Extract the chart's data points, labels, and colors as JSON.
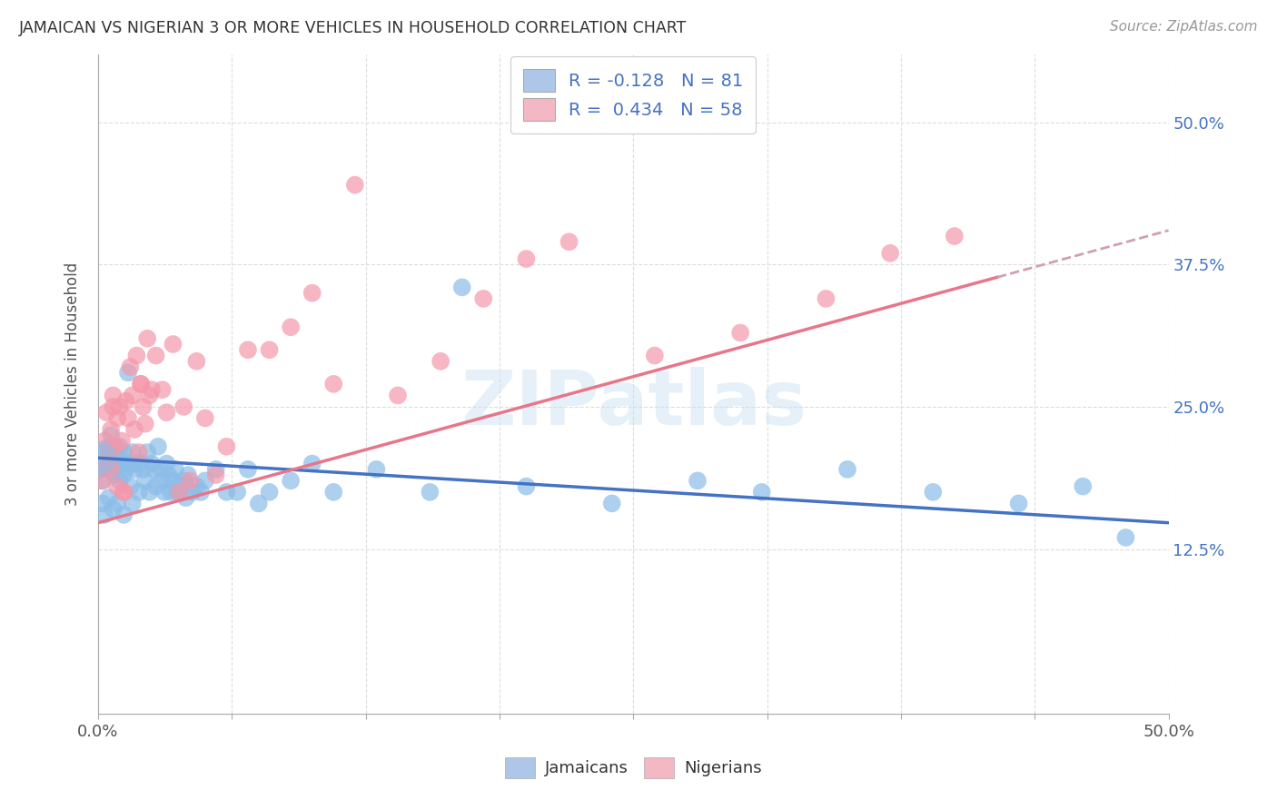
{
  "title": "JAMAICAN VS NIGERIAN 3 OR MORE VEHICLES IN HOUSEHOLD CORRELATION CHART",
  "source": "Source: ZipAtlas.com",
  "ylabel": "3 or more Vehicles in Household",
  "ytick_values": [
    0.125,
    0.25,
    0.375,
    0.5
  ],
  "ytick_labels": [
    "12.5%",
    "25.0%",
    "37.5%",
    "50.0%"
  ],
  "xlim": [
    0.0,
    0.5
  ],
  "ylim": [
    -0.02,
    0.56
  ],
  "jamaicans_color": "#8bbde8",
  "nigerians_color": "#f497aa",
  "regression_jamaicans_color": "#4472c4",
  "regression_nigerians_color": "#e8768a",
  "regression_dashed_color": "#d0a0b0",
  "legend_patch_jam_color": "#aec6e8",
  "legend_patch_nig_color": "#f4b8c4",
  "R_jamaicans": -0.128,
  "N_jamaicans": 81,
  "R_nigerians": 0.434,
  "N_nigerians": 58,
  "watermark_text": "ZIPatlas",
  "background_color": "#ffffff",
  "grid_color": "#dddddd",
  "xtick_positions": [
    0.0,
    0.0625,
    0.125,
    0.1875,
    0.25,
    0.3125,
    0.375,
    0.4375,
    0.5
  ],
  "regression_jam_y0": 0.205,
  "regression_jam_y1": 0.148,
  "regression_nig_y0": 0.148,
  "regression_nig_y1": 0.405,
  "regression_nig_solid_end": 0.42,
  "jamaicans_x": [
    0.001,
    0.002,
    0.003,
    0.004,
    0.005,
    0.005,
    0.006,
    0.006,
    0.007,
    0.007,
    0.008,
    0.008,
    0.009,
    0.009,
    0.01,
    0.01,
    0.011,
    0.012,
    0.012,
    0.013,
    0.014,
    0.015,
    0.015,
    0.016,
    0.017,
    0.018,
    0.019,
    0.02,
    0.021,
    0.022,
    0.023,
    0.024,
    0.025,
    0.026,
    0.027,
    0.028,
    0.029,
    0.03,
    0.031,
    0.032,
    0.033,
    0.034,
    0.035,
    0.036,
    0.037,
    0.038,
    0.04,
    0.041,
    0.042,
    0.044,
    0.046,
    0.048,
    0.05,
    0.055,
    0.06,
    0.065,
    0.07,
    0.075,
    0.08,
    0.09,
    0.1,
    0.11,
    0.13,
    0.155,
    0.17,
    0.2,
    0.24,
    0.28,
    0.31,
    0.35,
    0.39,
    0.43,
    0.46,
    0.48,
    0.002,
    0.003,
    0.005,
    0.007,
    0.009,
    0.012,
    0.016
  ],
  "jamaicans_y": [
    0.195,
    0.185,
    0.21,
    0.2,
    0.215,
    0.195,
    0.205,
    0.225,
    0.215,
    0.2,
    0.19,
    0.21,
    0.205,
    0.195,
    0.185,
    0.215,
    0.2,
    0.19,
    0.21,
    0.195,
    0.28,
    0.2,
    0.18,
    0.21,
    0.195,
    0.2,
    0.175,
    0.2,
    0.195,
    0.185,
    0.21,
    0.175,
    0.2,
    0.195,
    0.18,
    0.215,
    0.195,
    0.185,
    0.175,
    0.2,
    0.19,
    0.175,
    0.185,
    0.195,
    0.175,
    0.18,
    0.185,
    0.17,
    0.19,
    0.175,
    0.18,
    0.175,
    0.185,
    0.195,
    0.175,
    0.175,
    0.195,
    0.165,
    0.175,
    0.185,
    0.2,
    0.175,
    0.195,
    0.175,
    0.355,
    0.18,
    0.165,
    0.185,
    0.175,
    0.195,
    0.175,
    0.165,
    0.18,
    0.135,
    0.165,
    0.155,
    0.17,
    0.16,
    0.165,
    0.155,
    0.165
  ],
  "nigerians_x": [
    0.002,
    0.003,
    0.004,
    0.005,
    0.006,
    0.006,
    0.007,
    0.008,
    0.009,
    0.01,
    0.011,
    0.012,
    0.013,
    0.014,
    0.015,
    0.016,
    0.017,
    0.018,
    0.019,
    0.02,
    0.021,
    0.022,
    0.023,
    0.024,
    0.025,
    0.027,
    0.03,
    0.032,
    0.035,
    0.038,
    0.04,
    0.043,
    0.046,
    0.05,
    0.055,
    0.06,
    0.07,
    0.08,
    0.09,
    0.1,
    0.11,
    0.12,
    0.14,
    0.16,
    0.18,
    0.2,
    0.22,
    0.26,
    0.3,
    0.34,
    0.37,
    0.4,
    0.003,
    0.005,
    0.007,
    0.009,
    0.012,
    0.02
  ],
  "nigerians_y": [
    0.185,
    0.22,
    0.245,
    0.21,
    0.23,
    0.195,
    0.26,
    0.215,
    0.24,
    0.25,
    0.22,
    0.175,
    0.255,
    0.24,
    0.285,
    0.26,
    0.23,
    0.295,
    0.21,
    0.27,
    0.25,
    0.235,
    0.31,
    0.26,
    0.265,
    0.295,
    0.265,
    0.245,
    0.305,
    0.175,
    0.25,
    0.185,
    0.29,
    0.24,
    0.19,
    0.215,
    0.3,
    0.3,
    0.32,
    0.35,
    0.27,
    0.445,
    0.26,
    0.29,
    0.345,
    0.38,
    0.395,
    0.295,
    0.315,
    0.345,
    0.385,
    0.4,
    0.2,
    0.2,
    0.25,
    0.18,
    0.175,
    0.27
  ]
}
